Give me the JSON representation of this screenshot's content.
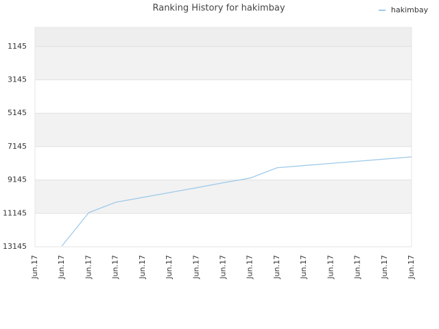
{
  "chart_data": {
    "type": "line",
    "title": "Ranking History for hakimbay",
    "categories": [
      "Jun.17",
      "Jun.17",
      "Jun.17",
      "Jun.17",
      "Jun.17",
      "Jun.17",
      "Jun.17",
      "Jun.17",
      "Jun.17",
      "Jun.17",
      "Jun.17",
      "Jun.17",
      "Jun.17",
      "Jun.17",
      "Jun.17"
    ],
    "series": [
      {
        "name": "hakimbay",
        "color": "#9ecae9",
        "values": [
          null,
          13100,
          11100,
          10480,
          10190,
          9900,
          9610,
          9310,
          9030,
          8410,
          8280,
          8150,
          8020,
          7890,
          7760
        ]
      }
    ],
    "ylim": [
      13145,
      0
    ],
    "yticks": [
      1145,
      3145,
      5145,
      7145,
      9145,
      11145,
      13145
    ],
    "grid": true,
    "legend": "top-right"
  }
}
